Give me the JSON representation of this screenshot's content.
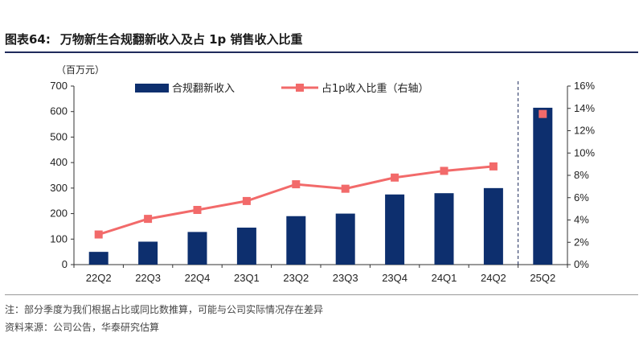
{
  "header": {
    "figure_label": "图表64:",
    "figure_title": "万物新生合规翻新收入及占 1p 销售收入比重"
  },
  "footer": {
    "note": "注：部分季度为我们根据占比或同比数推算，可能与公司实际情况存在差异",
    "source": "资料来源：公司公告，华泰研究估算"
  },
  "colors": {
    "bar": "#0d2f6e",
    "line": "#f26a6a",
    "marker": "#f26a6a",
    "divider": "#1f2b5c"
  },
  "chart_data": {
    "type": "bar+line",
    "title": "",
    "left_axis_unit": "（百万元）",
    "categories": [
      "22Q2",
      "22Q3",
      "22Q4",
      "23Q1",
      "23Q2",
      "23Q3",
      "23Q4",
      "24Q1",
      "24Q2",
      "25Q2"
    ],
    "series": [
      {
        "name": "合规翻新收入",
        "type": "bar",
        "axis": "left",
        "values": [
          50,
          90,
          128,
          145,
          190,
          200,
          275,
          280,
          300,
          615
        ]
      },
      {
        "name": "占1p收入比重（右轴）",
        "type": "line",
        "axis": "right",
        "values": [
          2.7,
          4.1,
          4.9,
          5.7,
          7.2,
          6.8,
          7.8,
          8.4,
          8.8,
          13.5
        ],
        "line_breaks_before": [
          9
        ]
      }
    ],
    "ylim_left": [
      0,
      700
    ],
    "yticks_left": [
      "0",
      "100",
      "200",
      "300",
      "400",
      "500",
      "600",
      "700"
    ],
    "ylim_right": [
      0,
      16
    ],
    "yticks_right": [
      "0%",
      "2%",
      "4%",
      "6%",
      "8%",
      "10%",
      "12%",
      "14%",
      "16%"
    ],
    "legend_position": "top",
    "grid": false,
    "vertical_divider_before_category": "25Q2"
  }
}
